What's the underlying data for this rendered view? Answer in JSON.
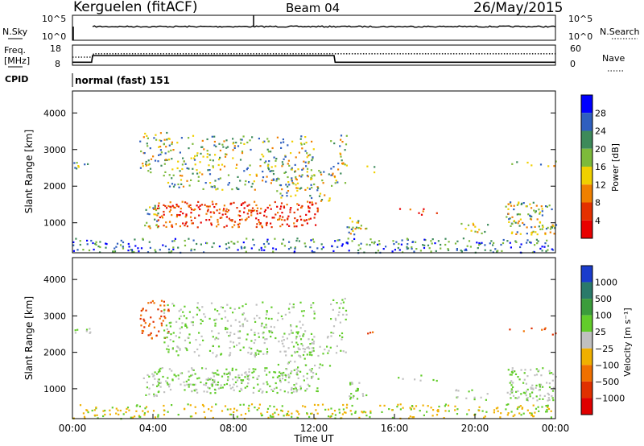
{
  "header": {
    "station": "Kerguelen (fitACF)",
    "beam": "Beam 04",
    "date": "26/May/2015"
  },
  "panel_labels": {
    "nsky": "N.Sky",
    "nsearch": "N.Search",
    "freq": "Freq.",
    "freq_unit": "[MHz]",
    "nave": "Nave",
    "cpid_label": "CPID",
    "cpid_value": "normal (fast) 151"
  },
  "chart_data": [
    {
      "type": "line",
      "title": "N.Sky / N.Search",
      "ylabels_left": [
        "10^5",
        "10^0"
      ],
      "ylabels_right": [
        "10^5",
        "10^0"
      ]
    },
    {
      "type": "line",
      "title": "Freq / Nave",
      "ylabels_left": [
        "18",
        "8"
      ],
      "ylabels_right": [
        "60",
        "0"
      ],
      "freq_series": {
        "x": [
          0,
          0.95,
          1.0,
          13.0,
          13.05,
          24
        ],
        "y": [
          9.5,
          9.5,
          12.8,
          12.8,
          9.5,
          9.5
        ]
      },
      "nave_series": {
        "x": [
          0,
          1.0,
          1.05,
          24
        ],
        "y": [
          24,
          24,
          34,
          34
        ]
      }
    },
    {
      "type": "heatmap",
      "ylabel": "Slant Range [km]",
      "yticks": [
        "1000",
        "2000",
        "3000",
        "4000"
      ],
      "ylim": [
        180,
        4600
      ],
      "colorbar_title": "Power [dB]",
      "colorbar_ticks": [
        "4",
        "8",
        "12",
        "16",
        "20",
        "24",
        "28"
      ],
      "colorbar_colors": [
        "#0000ff",
        "#2f5fbf",
        "#3d8a5a",
        "#7dba3a",
        "#f0d000",
        "#f08000",
        "#e43000",
        "#e80000"
      ]
    },
    {
      "type": "heatmap",
      "ylabel": "Slant Range [km]",
      "yticks": [
        "1000",
        "2000",
        "3000",
        "4000"
      ],
      "ylim": [
        180,
        4600
      ],
      "colorbar_title": "Velocity [m s⁻¹]",
      "colorbar_ticks": [
        "1000",
        "500",
        "100",
        "25",
        "−25",
        "−100",
        "−500",
        "−1000"
      ],
      "colorbar_colors": [
        "#1a3ccc",
        "#2a7a6a",
        "#3b9c3b",
        "#62cc2a",
        "#c0c0c0",
        "#f0b000",
        "#f07000",
        "#e03000",
        "#e00000"
      ]
    }
  ],
  "xaxis": {
    "ticks": [
      "00:00",
      "04:00",
      "08:00",
      "12:00",
      "16:00",
      "20:00",
      "00:00"
    ],
    "label": "Time UT"
  }
}
